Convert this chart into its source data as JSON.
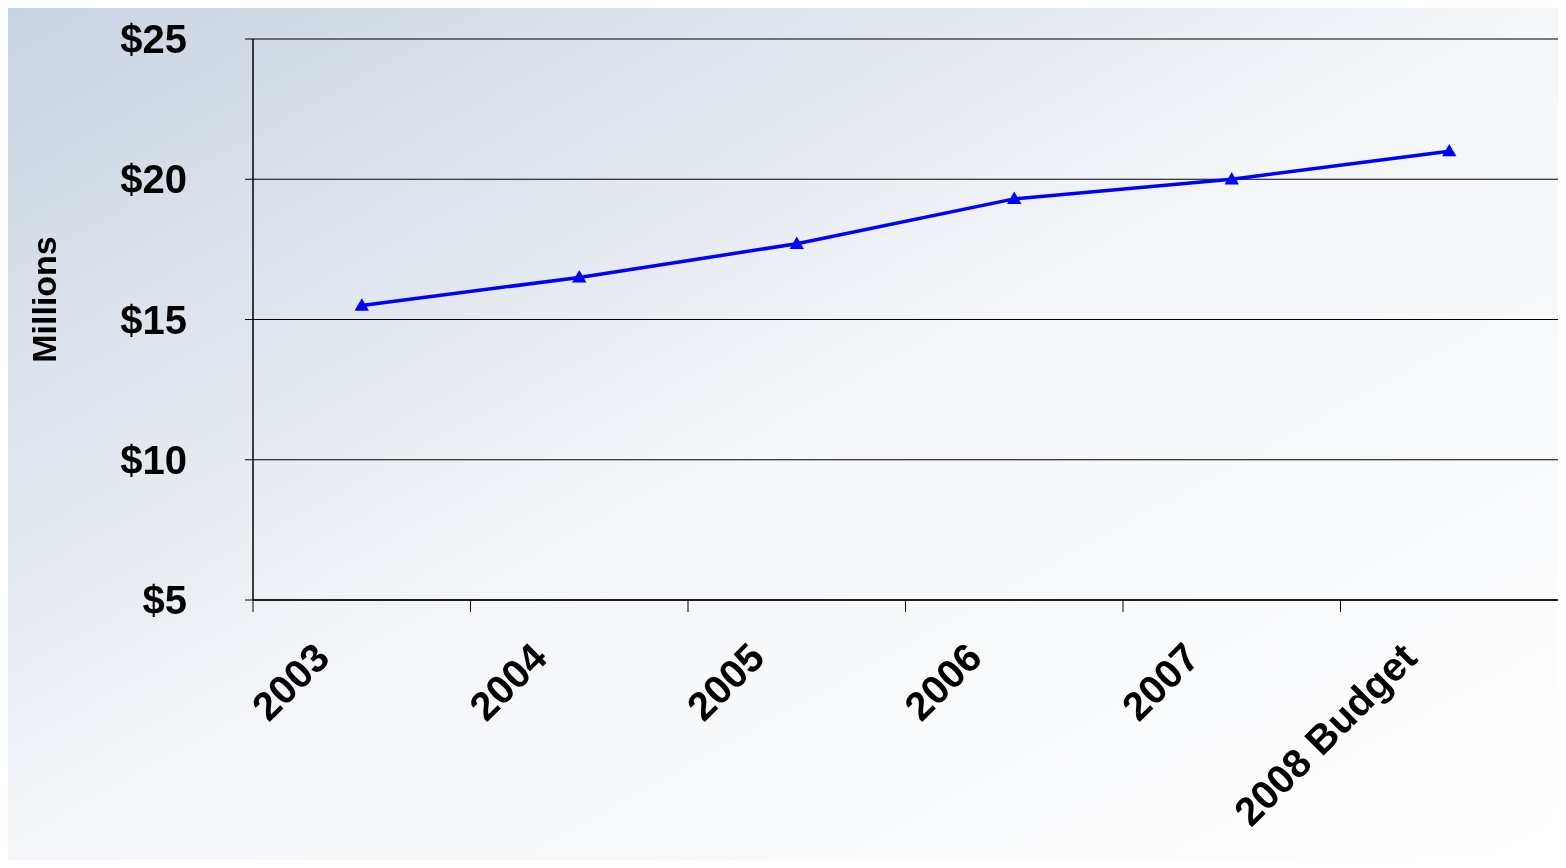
{
  "chart_data": {
    "type": "line",
    "ylabel": "Millions",
    "categories": [
      "2003",
      "2004",
      "2005",
      "2006",
      "2007",
      "2008 Budget"
    ],
    "series": [
      {
        "color": "#0000ff",
        "values": [
          15.5,
          16.5,
          17.7,
          19.3,
          20.0,
          21.0
        ]
      }
    ],
    "ylim": [
      5,
      25
    ],
    "yticks": [
      {
        "value": 5,
        "label": "$5"
      },
      {
        "value": 10,
        "label": "$10"
      },
      {
        "value": 15,
        "label": "$15"
      },
      {
        "value": 20,
        "label": "$20"
      },
      {
        "value": 25,
        "label": "$25"
      }
    ],
    "grid": "y",
    "marker": "triangle",
    "line_style": "solid"
  }
}
